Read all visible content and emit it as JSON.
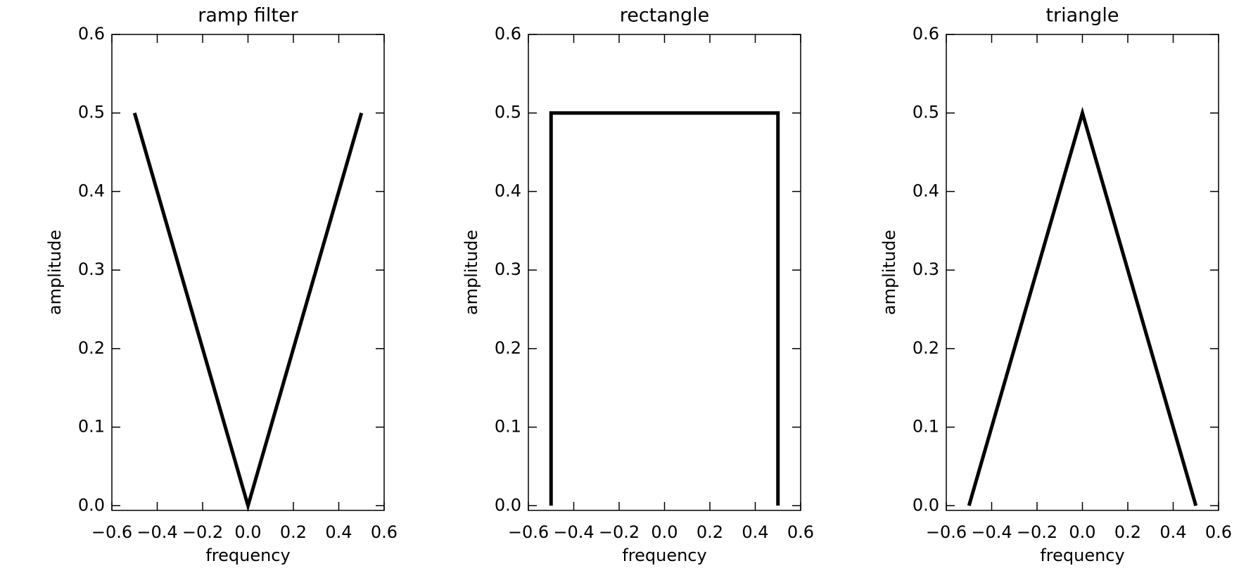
{
  "chart_data": [
    {
      "type": "line",
      "title": "ramp filter",
      "xlabel": "frequency",
      "ylabel": "amplitude",
      "x": [
        -0.5,
        0,
        0.5
      ],
      "values": [
        0.5,
        0,
        0.5
      ],
      "color": "#000000",
      "xlim": [
        -0.6,
        0.6
      ],
      "ylim": [
        -0.006,
        0.6
      ],
      "xticks": [
        {
          "value": -0.6,
          "label": "−0.6"
        },
        {
          "value": -0.4,
          "label": "−0.4"
        },
        {
          "value": -0.2,
          "label": "−0.2"
        },
        {
          "value": 0,
          "label": "0.0"
        },
        0.2,
        0.4,
        0.6
      ],
      "yticks": [
        {
          "value": 0,
          "label": "0.0"
        },
        0.1,
        0.2,
        0.3,
        0.4,
        0.5,
        0.6
      ]
    },
    {
      "type": "line",
      "title": "rectangle",
      "xlabel": "frequency",
      "ylabel": "amplitude",
      "x": [
        -0.5,
        -0.5,
        0.5,
        0.5
      ],
      "values": [
        0,
        0.5,
        0.5,
        0
      ],
      "color": "#000000",
      "xlim": [
        -0.6,
        0.6
      ],
      "ylim": [
        -0.006,
        0.6
      ],
      "xticks": [
        {
          "value": -0.6,
          "label": "−0.6"
        },
        {
          "value": -0.4,
          "label": "−0.4"
        },
        {
          "value": -0.2,
          "label": "−0.2"
        },
        {
          "value": 0,
          "label": "0.0"
        },
        0.2,
        0.4,
        0.6
      ],
      "yticks": [
        {
          "value": 0,
          "label": "0.0"
        },
        0.1,
        0.2,
        0.3,
        0.4,
        0.5,
        0.6
      ]
    },
    {
      "type": "line",
      "title": "triangle",
      "xlabel": "frequency",
      "ylabel": "amplitude",
      "x": [
        -0.5,
        0,
        0.5
      ],
      "values": [
        0,
        0.5,
        0
      ],
      "color": "#000000",
      "xlim": [
        -0.6,
        0.6
      ],
      "ylim": [
        -0.006,
        0.6
      ],
      "xticks": [
        {
          "value": -0.6,
          "label": "−0.6"
        },
        {
          "value": -0.4,
          "label": "−0.4"
        },
        {
          "value": -0.2,
          "label": "−0.2"
        },
        {
          "value": 0,
          "label": "0.0"
        },
        0.2,
        0.4,
        0.6
      ],
      "yticks": [
        {
          "value": 0,
          "label": "0.0"
        },
        0.1,
        0.2,
        0.3,
        0.4,
        0.5,
        0.6
      ]
    }
  ]
}
